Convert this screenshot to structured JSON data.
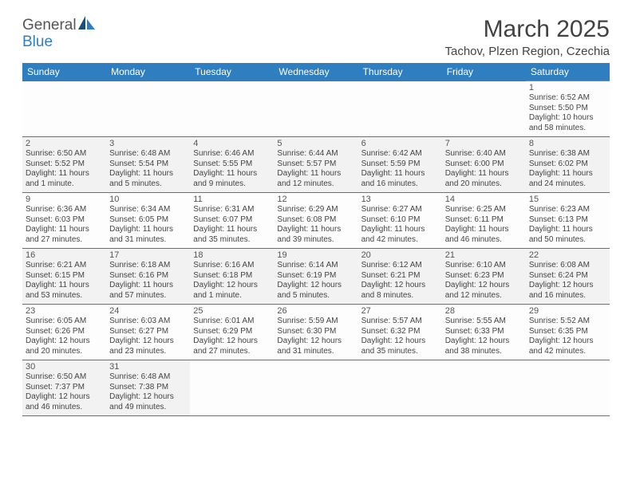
{
  "logo": {
    "part1": "General",
    "part2": "Blue"
  },
  "title": "March 2025",
  "location": "Tachov, Plzen Region, Czechia",
  "weekdays": [
    "Sunday",
    "Monday",
    "Tuesday",
    "Wednesday",
    "Thursday",
    "Friday",
    "Saturday"
  ],
  "colors": {
    "header_bg": "#2f7ec0",
    "header_fg": "#ffffff",
    "grey_bg": "#f2f2f2",
    "border": "#888888",
    "row_border": "#2f7ec0"
  },
  "weeks": [
    [
      null,
      null,
      null,
      null,
      null,
      null,
      {
        "n": "1",
        "sr": "6:52 AM",
        "ss": "5:50 PM",
        "dl": "10 hours and 58 minutes."
      }
    ],
    [
      {
        "n": "2",
        "sr": "6:50 AM",
        "ss": "5:52 PM",
        "dl": "11 hours and 1 minute.",
        "g": true
      },
      {
        "n": "3",
        "sr": "6:48 AM",
        "ss": "5:54 PM",
        "dl": "11 hours and 5 minutes.",
        "g": true
      },
      {
        "n": "4",
        "sr": "6:46 AM",
        "ss": "5:55 PM",
        "dl": "11 hours and 9 minutes.",
        "g": true
      },
      {
        "n": "5",
        "sr": "6:44 AM",
        "ss": "5:57 PM",
        "dl": "11 hours and 12 minutes.",
        "g": true
      },
      {
        "n": "6",
        "sr": "6:42 AM",
        "ss": "5:59 PM",
        "dl": "11 hours and 16 minutes.",
        "g": true
      },
      {
        "n": "7",
        "sr": "6:40 AM",
        "ss": "6:00 PM",
        "dl": "11 hours and 20 minutes.",
        "g": true
      },
      {
        "n": "8",
        "sr": "6:38 AM",
        "ss": "6:02 PM",
        "dl": "11 hours and 24 minutes.",
        "g": true
      }
    ],
    [
      {
        "n": "9",
        "sr": "6:36 AM",
        "ss": "6:03 PM",
        "dl": "11 hours and 27 minutes."
      },
      {
        "n": "10",
        "sr": "6:34 AM",
        "ss": "6:05 PM",
        "dl": "11 hours and 31 minutes."
      },
      {
        "n": "11",
        "sr": "6:31 AM",
        "ss": "6:07 PM",
        "dl": "11 hours and 35 minutes."
      },
      {
        "n": "12",
        "sr": "6:29 AM",
        "ss": "6:08 PM",
        "dl": "11 hours and 39 minutes."
      },
      {
        "n": "13",
        "sr": "6:27 AM",
        "ss": "6:10 PM",
        "dl": "11 hours and 42 minutes."
      },
      {
        "n": "14",
        "sr": "6:25 AM",
        "ss": "6:11 PM",
        "dl": "11 hours and 46 minutes."
      },
      {
        "n": "15",
        "sr": "6:23 AM",
        "ss": "6:13 PM",
        "dl": "11 hours and 50 minutes."
      }
    ],
    [
      {
        "n": "16",
        "sr": "6:21 AM",
        "ss": "6:15 PM",
        "dl": "11 hours and 53 minutes.",
        "g": true
      },
      {
        "n": "17",
        "sr": "6:18 AM",
        "ss": "6:16 PM",
        "dl": "11 hours and 57 minutes.",
        "g": true
      },
      {
        "n": "18",
        "sr": "6:16 AM",
        "ss": "6:18 PM",
        "dl": "12 hours and 1 minute.",
        "g": true
      },
      {
        "n": "19",
        "sr": "6:14 AM",
        "ss": "6:19 PM",
        "dl": "12 hours and 5 minutes.",
        "g": true
      },
      {
        "n": "20",
        "sr": "6:12 AM",
        "ss": "6:21 PM",
        "dl": "12 hours and 8 minutes.",
        "g": true
      },
      {
        "n": "21",
        "sr": "6:10 AM",
        "ss": "6:23 PM",
        "dl": "12 hours and 12 minutes.",
        "g": true
      },
      {
        "n": "22",
        "sr": "6:08 AM",
        "ss": "6:24 PM",
        "dl": "12 hours and 16 minutes.",
        "g": true
      }
    ],
    [
      {
        "n": "23",
        "sr": "6:05 AM",
        "ss": "6:26 PM",
        "dl": "12 hours and 20 minutes."
      },
      {
        "n": "24",
        "sr": "6:03 AM",
        "ss": "6:27 PM",
        "dl": "12 hours and 23 minutes."
      },
      {
        "n": "25",
        "sr": "6:01 AM",
        "ss": "6:29 PM",
        "dl": "12 hours and 27 minutes."
      },
      {
        "n": "26",
        "sr": "5:59 AM",
        "ss": "6:30 PM",
        "dl": "12 hours and 31 minutes."
      },
      {
        "n": "27",
        "sr": "5:57 AM",
        "ss": "6:32 PM",
        "dl": "12 hours and 35 minutes."
      },
      {
        "n": "28",
        "sr": "5:55 AM",
        "ss": "6:33 PM",
        "dl": "12 hours and 38 minutes."
      },
      {
        "n": "29",
        "sr": "5:52 AM",
        "ss": "6:35 PM",
        "dl": "12 hours and 42 minutes."
      }
    ],
    [
      {
        "n": "30",
        "sr": "6:50 AM",
        "ss": "7:37 PM",
        "dl": "12 hours and 46 minutes.",
        "g": true
      },
      {
        "n": "31",
        "sr": "6:48 AM",
        "ss": "7:38 PM",
        "dl": "12 hours and 49 minutes.",
        "g": true
      },
      null,
      null,
      null,
      null,
      null
    ]
  ],
  "labels": {
    "sunrise": "Sunrise:",
    "sunset": "Sunset:",
    "daylight": "Daylight:"
  }
}
